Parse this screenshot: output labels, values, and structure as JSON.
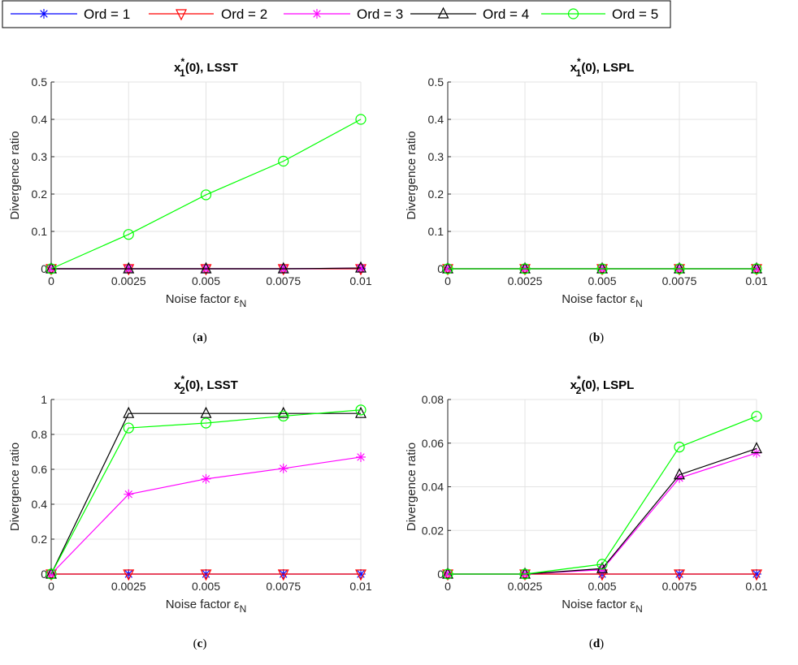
{
  "legend": [
    {
      "label": "Ord = 1",
      "color": "#0000ff",
      "marker": "asterisk"
    },
    {
      "label": "Ord = 2",
      "color": "#ff0000",
      "marker": "triangle-down"
    },
    {
      "label": "Ord = 3",
      "color": "#ff00ff",
      "marker": "asterisk"
    },
    {
      "label": "Ord = 4",
      "color": "#000000",
      "marker": "triangle-up"
    },
    {
      "label": "Ord = 5",
      "color": "#00ff00",
      "marker": "circle"
    }
  ],
  "chart_data": [
    {
      "type": "line",
      "panel_label": "(a)",
      "title_var": "x",
      "title_sup": "*",
      "title_sub": "1",
      "title_rest": "(0), LSST",
      "xlabel": "Noise factor ε",
      "xlabel_sub": "N",
      "ylabel": "Divergence ratio",
      "x": [
        0,
        0.0025,
        0.005,
        0.0075,
        0.01
      ],
      "xticks": [
        "0",
        "0.0025",
        "0.005",
        "0.0075",
        "0.01"
      ],
      "ylim": [
        0,
        0.5
      ],
      "yticks": [
        "0",
        "0.1",
        "0.2",
        "0.3",
        "0.4",
        "0.5"
      ],
      "series": [
        {
          "name": "Ord = 1",
          "values": [
            0,
            0,
            0,
            0,
            0
          ]
        },
        {
          "name": "Ord = 2",
          "values": [
            0,
            0,
            0,
            0,
            0
          ]
        },
        {
          "name": "Ord = 3",
          "values": [
            0,
            0,
            0,
            0,
            0.002
          ]
        },
        {
          "name": "Ord = 4",
          "values": [
            0,
            0,
            0,
            0,
            0.002
          ]
        },
        {
          "name": "Ord = 5",
          "values": [
            0,
            0.092,
            0.198,
            0.288,
            0.4
          ]
        }
      ]
    },
    {
      "type": "line",
      "panel_label": "(b)",
      "title_var": "x",
      "title_sup": "*",
      "title_sub": "1",
      "title_rest": "(0), LSPL",
      "xlabel": "Noise factor ε",
      "xlabel_sub": "N",
      "ylabel": "Divergence ratio",
      "x": [
        0,
        0.0025,
        0.005,
        0.0075,
        0.01
      ],
      "xticks": [
        "0",
        "0.0025",
        "0.005",
        "0.0075",
        "0.01"
      ],
      "ylim": [
        0,
        0.5
      ],
      "yticks": [
        "0",
        "0.1",
        "0.2",
        "0.3",
        "0.4",
        "0.5"
      ],
      "series": [
        {
          "name": "Ord = 1",
          "values": [
            0,
            0,
            0,
            0,
            0
          ]
        },
        {
          "name": "Ord = 2",
          "values": [
            0,
            0,
            0,
            0,
            0
          ]
        },
        {
          "name": "Ord = 3",
          "values": [
            0,
            0,
            0,
            0,
            0
          ]
        },
        {
          "name": "Ord = 4",
          "values": [
            0,
            0,
            0,
            0,
            0
          ]
        },
        {
          "name": "Ord = 5",
          "values": [
            0,
            0,
            0,
            0,
            0
          ]
        }
      ]
    },
    {
      "type": "line",
      "panel_label": "(c)",
      "title_var": "x",
      "title_sup": "*",
      "title_sub": "2",
      "title_rest": "(0), LSST",
      "xlabel": "Noise factor ε",
      "xlabel_sub": "N",
      "ylabel": "Divergence ratio",
      "x": [
        0,
        0.0025,
        0.005,
        0.0075,
        0.01
      ],
      "xticks": [
        "0",
        "0.0025",
        "0.005",
        "0.0075",
        "0.01"
      ],
      "ylim": [
        0,
        1
      ],
      "yticks": [
        "0",
        "0.2",
        "0.4",
        "0.6",
        "0.8",
        "1"
      ],
      "series": [
        {
          "name": "Ord = 1",
          "values": [
            0,
            0,
            0,
            0,
            0
          ]
        },
        {
          "name": "Ord = 2",
          "values": [
            0,
            0,
            0,
            0,
            0
          ]
        },
        {
          "name": "Ord = 3",
          "values": [
            0,
            0.457,
            0.545,
            0.605,
            0.67
          ]
        },
        {
          "name": "Ord = 4",
          "values": [
            0,
            0.92,
            0.92,
            0.92,
            0.92
          ]
        },
        {
          "name": "Ord = 5",
          "values": [
            0,
            0.837,
            0.865,
            0.905,
            0.94
          ]
        }
      ]
    },
    {
      "type": "line",
      "panel_label": "(d)",
      "title_var": "x",
      "title_sup": "*",
      "title_sub": "2",
      "title_rest": "(0), LSPL",
      "xlabel": "Noise factor ε",
      "xlabel_sub": "N",
      "ylabel": "Divergence ratio",
      "x": [
        0,
        0.0025,
        0.005,
        0.0075,
        0.01
      ],
      "xticks": [
        "0",
        "0.0025",
        "0.005",
        "0.0075",
        "0.01"
      ],
      "ylim": [
        0,
        0.08
      ],
      "yticks": [
        "0",
        "0.02",
        "0.04",
        "0.06",
        "0.08"
      ],
      "series": [
        {
          "name": "Ord = 1",
          "values": [
            0,
            0,
            0,
            0,
            0
          ]
        },
        {
          "name": "Ord = 2",
          "values": [
            0,
            0,
            0,
            0,
            0
          ]
        },
        {
          "name": "Ord = 3",
          "values": [
            0,
            0,
            0.002,
            0.044,
            0.0555
          ]
        },
        {
          "name": "Ord = 4",
          "values": [
            0,
            0,
            0.0025,
            0.0455,
            0.0575
          ]
        },
        {
          "name": "Ord = 5",
          "values": [
            0,
            0,
            0.0045,
            0.0582,
            0.0723
          ]
        }
      ]
    }
  ]
}
